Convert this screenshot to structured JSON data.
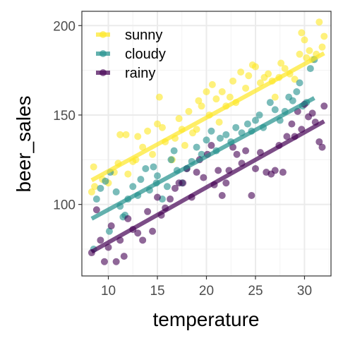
{
  "chart_data": {
    "type": "scatter",
    "xlabel": "temperature",
    "ylabel": "beer_sales",
    "xlim": [
      7.3,
      32.7
    ],
    "ylim": [
      60,
      208
    ],
    "x_ticks": [
      10,
      15,
      20,
      25,
      30
    ],
    "y_ticks": [
      100,
      150,
      200
    ],
    "grid": true,
    "legend_position": "top-left",
    "point_opacity": 0.6,
    "series": [
      {
        "name": "sunny",
        "color": "#FDE725",
        "trend": {
          "x": [
            8.3,
            32.0
          ],
          "y": [
            113.5,
            184.5
          ]
        },
        "points": [
          [
            8.3,
            107
          ],
          [
            8.6,
            110
          ],
          [
            8.5,
            121
          ],
          [
            9.4,
            114
          ],
          [
            10.0,
            112
          ],
          [
            10.6,
            118
          ],
          [
            11.0,
            123
          ],
          [
            11.2,
            139
          ],
          [
            11.8,
            139
          ],
          [
            12.0,
            117
          ],
          [
            12.5,
            124
          ],
          [
            12.8,
            125
          ],
          [
            13.0,
            138
          ],
          [
            13.5,
            132
          ],
          [
            14.0,
            141
          ],
          [
            14.5,
            128
          ],
          [
            15.0,
            145
          ],
          [
            15.2,
            160
          ],
          [
            15.5,
            143
          ],
          [
            15.8,
            135
          ],
          [
            16.5,
            125
          ],
          [
            16.8,
            137
          ],
          [
            17.2,
            148
          ],
          [
            17.5,
            142
          ],
          [
            17.8,
            133
          ],
          [
            18.2,
            152
          ],
          [
            18.6,
            140
          ],
          [
            19.0,
            142
          ],
          [
            19.5,
            155
          ],
          [
            19.2,
            158
          ],
          [
            20.0,
            163
          ],
          [
            20.3,
            150
          ],
          [
            20.6,
            167
          ],
          [
            21.0,
            159
          ],
          [
            21.3,
            146
          ],
          [
            21.6,
            163
          ],
          [
            22.0,
            155
          ],
          [
            22.4,
            160
          ],
          [
            22.7,
            169
          ],
          [
            23.0,
            157
          ],
          [
            23.5,
            174
          ],
          [
            24.0,
            165
          ],
          [
            24.3,
            172
          ],
          [
            24.7,
            178
          ],
          [
            25.0,
            177
          ],
          [
            25.5,
            168
          ],
          [
            25.9,
            171
          ],
          [
            26.3,
            173
          ],
          [
            26.7,
            169
          ],
          [
            27.0,
            160
          ],
          [
            27.4,
            171
          ],
          [
            27.6,
            179
          ],
          [
            28.0,
            176
          ],
          [
            28.5,
            173
          ],
          [
            29.0,
            170
          ],
          [
            29.5,
            184
          ],
          [
            29.7,
            196
          ],
          [
            30.0,
            192
          ],
          [
            30.2,
            182
          ],
          [
            30.5,
            186
          ],
          [
            30.8,
            181
          ],
          [
            31.2,
            184
          ],
          [
            31.5,
            202
          ],
          [
            31.8,
            188
          ],
          [
            32.0,
            194
          ]
        ]
      },
      {
        "name": "cloudy",
        "color": "#21908C",
        "trend": {
          "x": [
            8.3,
            31.0
          ],
          "y": [
            92,
            159.5
          ]
        },
        "points": [
          [
            8.5,
            75
          ],
          [
            8.8,
            103
          ],
          [
            9.2,
            109
          ],
          [
            9.7,
            113
          ],
          [
            10.2,
            118
          ],
          [
            10.8,
            107
          ],
          [
            11.2,
            99
          ],
          [
            11.5,
            93
          ],
          [
            12.0,
            103
          ],
          [
            12.5,
            110
          ],
          [
            13.0,
            105
          ],
          [
            13.3,
            114
          ],
          [
            13.8,
            120
          ],
          [
            14.2,
            108
          ],
          [
            14.6,
            121
          ],
          [
            15.0,
            116
          ],
          [
            15.5,
            103
          ],
          [
            16.0,
            110
          ],
          [
            16.4,
            125
          ],
          [
            16.7,
            130
          ],
          [
            17.0,
            119
          ],
          [
            17.5,
            112
          ],
          [
            18.0,
            120
          ],
          [
            18.5,
            124
          ],
          [
            19.0,
            132
          ],
          [
            19.5,
            128
          ],
          [
            20.0,
            136
          ],
          [
            20.5,
            141
          ],
          [
            21.0,
            130
          ],
          [
            21.4,
            137
          ],
          [
            22.0,
            139
          ],
          [
            22.5,
            135
          ],
          [
            23.0,
            143
          ],
          [
            23.6,
            140
          ],
          [
            24.2,
            145
          ],
          [
            24.6,
            141
          ],
          [
            25.0,
            147
          ],
          [
            25.4,
            150
          ],
          [
            25.8,
            143
          ],
          [
            26.5,
            157
          ],
          [
            27.0,
            153
          ],
          [
            27.5,
            147
          ],
          [
            28.0,
            152
          ],
          [
            28.4,
            160
          ],
          [
            28.8,
            158
          ],
          [
            29.2,
            163
          ],
          [
            29.5,
            168
          ],
          [
            29.8,
            155
          ],
          [
            30.2,
            157
          ],
          [
            30.6,
            176
          ],
          [
            31.0,
            181
          ],
          [
            10.1,
            85
          ],
          [
            11.7,
            94
          ],
          [
            14.9,
            112
          ]
        ]
      },
      {
        "name": "rainy",
        "color": "#440154",
        "trend": {
          "x": [
            8.3,
            32.0
          ],
          "y": [
            73.5,
            146.5
          ]
        },
        "points": [
          [
            8.3,
            73
          ],
          [
            8.8,
            97
          ],
          [
            9.2,
            80
          ],
          [
            9.6,
            68
          ],
          [
            10.0,
            76
          ],
          [
            10.3,
            88
          ],
          [
            10.8,
            68
          ],
          [
            11.2,
            80
          ],
          [
            11.6,
            71
          ],
          [
            12.0,
            92
          ],
          [
            12.5,
            86
          ],
          [
            13.0,
            84
          ],
          [
            13.5,
            80
          ],
          [
            14.0,
            96
          ],
          [
            14.5,
            85
          ],
          [
            15.0,
            104
          ],
          [
            15.4,
            94
          ],
          [
            15.8,
            98
          ],
          [
            16.3,
            103
          ],
          [
            16.8,
            109
          ],
          [
            17.2,
            112
          ],
          [
            17.6,
            112
          ],
          [
            18.0,
            120
          ],
          [
            18.5,
            104
          ],
          [
            19.0,
            118
          ],
          [
            19.3,
            125
          ],
          [
            19.7,
            115
          ],
          [
            20.1,
            128
          ],
          [
            20.5,
            133
          ],
          [
            20.8,
            111
          ],
          [
            21.2,
            119
          ],
          [
            21.6,
            105
          ],
          [
            22.0,
            112
          ],
          [
            22.3,
            119
          ],
          [
            22.7,
            132
          ],
          [
            23.1,
            128
          ],
          [
            23.6,
            123
          ],
          [
            24.0,
            130
          ],
          [
            24.6,
            105
          ],
          [
            25.0,
            120
          ],
          [
            25.5,
            129
          ],
          [
            26.1,
            118
          ],
          [
            26.6,
            117
          ],
          [
            27.0,
            119
          ],
          [
            27.4,
            133
          ],
          [
            27.8,
            118
          ],
          [
            28.2,
            138
          ],
          [
            28.7,
            145
          ],
          [
            29.0,
            138
          ],
          [
            29.3,
            152
          ],
          [
            29.7,
            142
          ],
          [
            30.0,
            156
          ],
          [
            30.4,
            149
          ],
          [
            30.8,
            151
          ],
          [
            31.1,
            146
          ],
          [
            31.5,
            135
          ],
          [
            31.8,
            132
          ],
          [
            32.0,
            155
          ]
        ]
      }
    ]
  }
}
